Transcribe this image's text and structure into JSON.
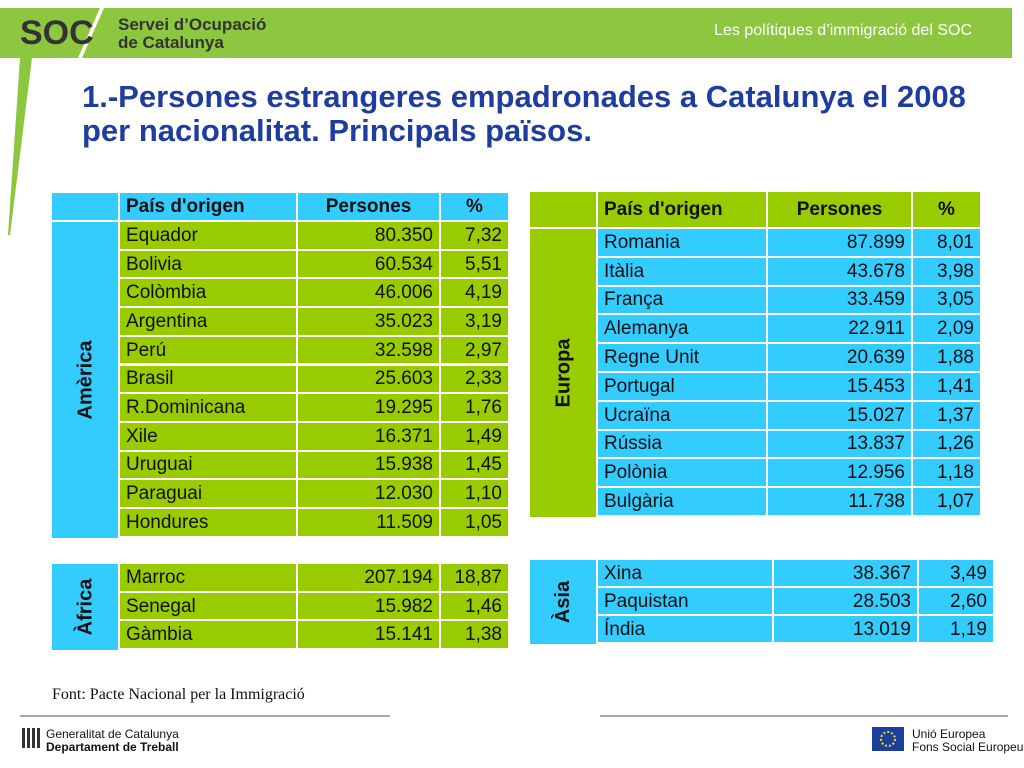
{
  "header": {
    "logo": "SOC",
    "org_line1": "Servei d’Ocupació",
    "org_line2": "de Catalunya",
    "section": "Les polítiques d’immigració del SOC"
  },
  "title": "1.-Persones estrangeres empadronades a Catalunya el 2008 per nacionalitat. Principals països.",
  "left_table": {
    "columns": [
      "País d'origen",
      "Persones",
      "%"
    ],
    "groups": [
      {
        "region": "Amèrica",
        "rows": [
          [
            "Equador",
            "80.350",
            "7,32"
          ],
          [
            "Bolivia",
            "60.534",
            "5,51"
          ],
          [
            "Colòmbia",
            "46.006",
            "4,19"
          ],
          [
            "Argentina",
            "35.023",
            "3,19"
          ],
          [
            "Perú",
            "32.598",
            "2,97"
          ],
          [
            "Brasil",
            "25.603",
            "2,33"
          ],
          [
            "R.Dominicana",
            "19.295",
            "1,76"
          ],
          [
            "Xile",
            "16.371",
            "1,49"
          ],
          [
            "Uruguai",
            "15.938",
            "1,45"
          ],
          [
            "Paraguai",
            "12.030",
            "1,10"
          ],
          [
            "Hondures",
            "11.509",
            "1,05"
          ]
        ]
      },
      {
        "region": "Àfrica",
        "rows": [
          [
            "Marroc",
            "207.194",
            "18,87"
          ],
          [
            "Senegal",
            "15.982",
            "1,46"
          ],
          [
            "Gàmbia",
            "15.141",
            "1,38"
          ]
        ]
      }
    ]
  },
  "right_table": {
    "columns": [
      "País d'origen",
      "Persones",
      "%"
    ],
    "groups": [
      {
        "region": "Europa",
        "rows": [
          [
            "Romania",
            "87.899",
            "8,01"
          ],
          [
            "Itàlia",
            "43.678",
            "3,98"
          ],
          [
            "França",
            "33.459",
            "3,05"
          ],
          [
            "Alemanya",
            "22.911",
            "2,09"
          ],
          [
            "Regne Unit",
            "20.639",
            "1,88"
          ],
          [
            "Portugal",
            "15.453",
            "1,41"
          ],
          [
            "Ucraïna",
            "15.027",
            "1,37"
          ],
          [
            "Rússia",
            "13.837",
            "1,26"
          ],
          [
            "Polònia",
            "12.956",
            "1,18"
          ],
          [
            "Bulgària",
            "11.738",
            "1,07"
          ]
        ]
      },
      {
        "region": "Àsia",
        "rows": [
          [
            "Xina",
            "38.367",
            "3,49"
          ],
          [
            "Paquistan",
            "28.503",
            "2,60"
          ],
          [
            "Índia",
            "13.019",
            "1,19"
          ]
        ]
      }
    ]
  },
  "source": "Font: Pacte Nacional per la Immigració",
  "footer": {
    "left_line1": "Generalitat de Catalunya",
    "left_line2": "Departament de Treball",
    "right_line1": "Unió Europea",
    "right_line2": "Fons Social Europeu"
  }
}
